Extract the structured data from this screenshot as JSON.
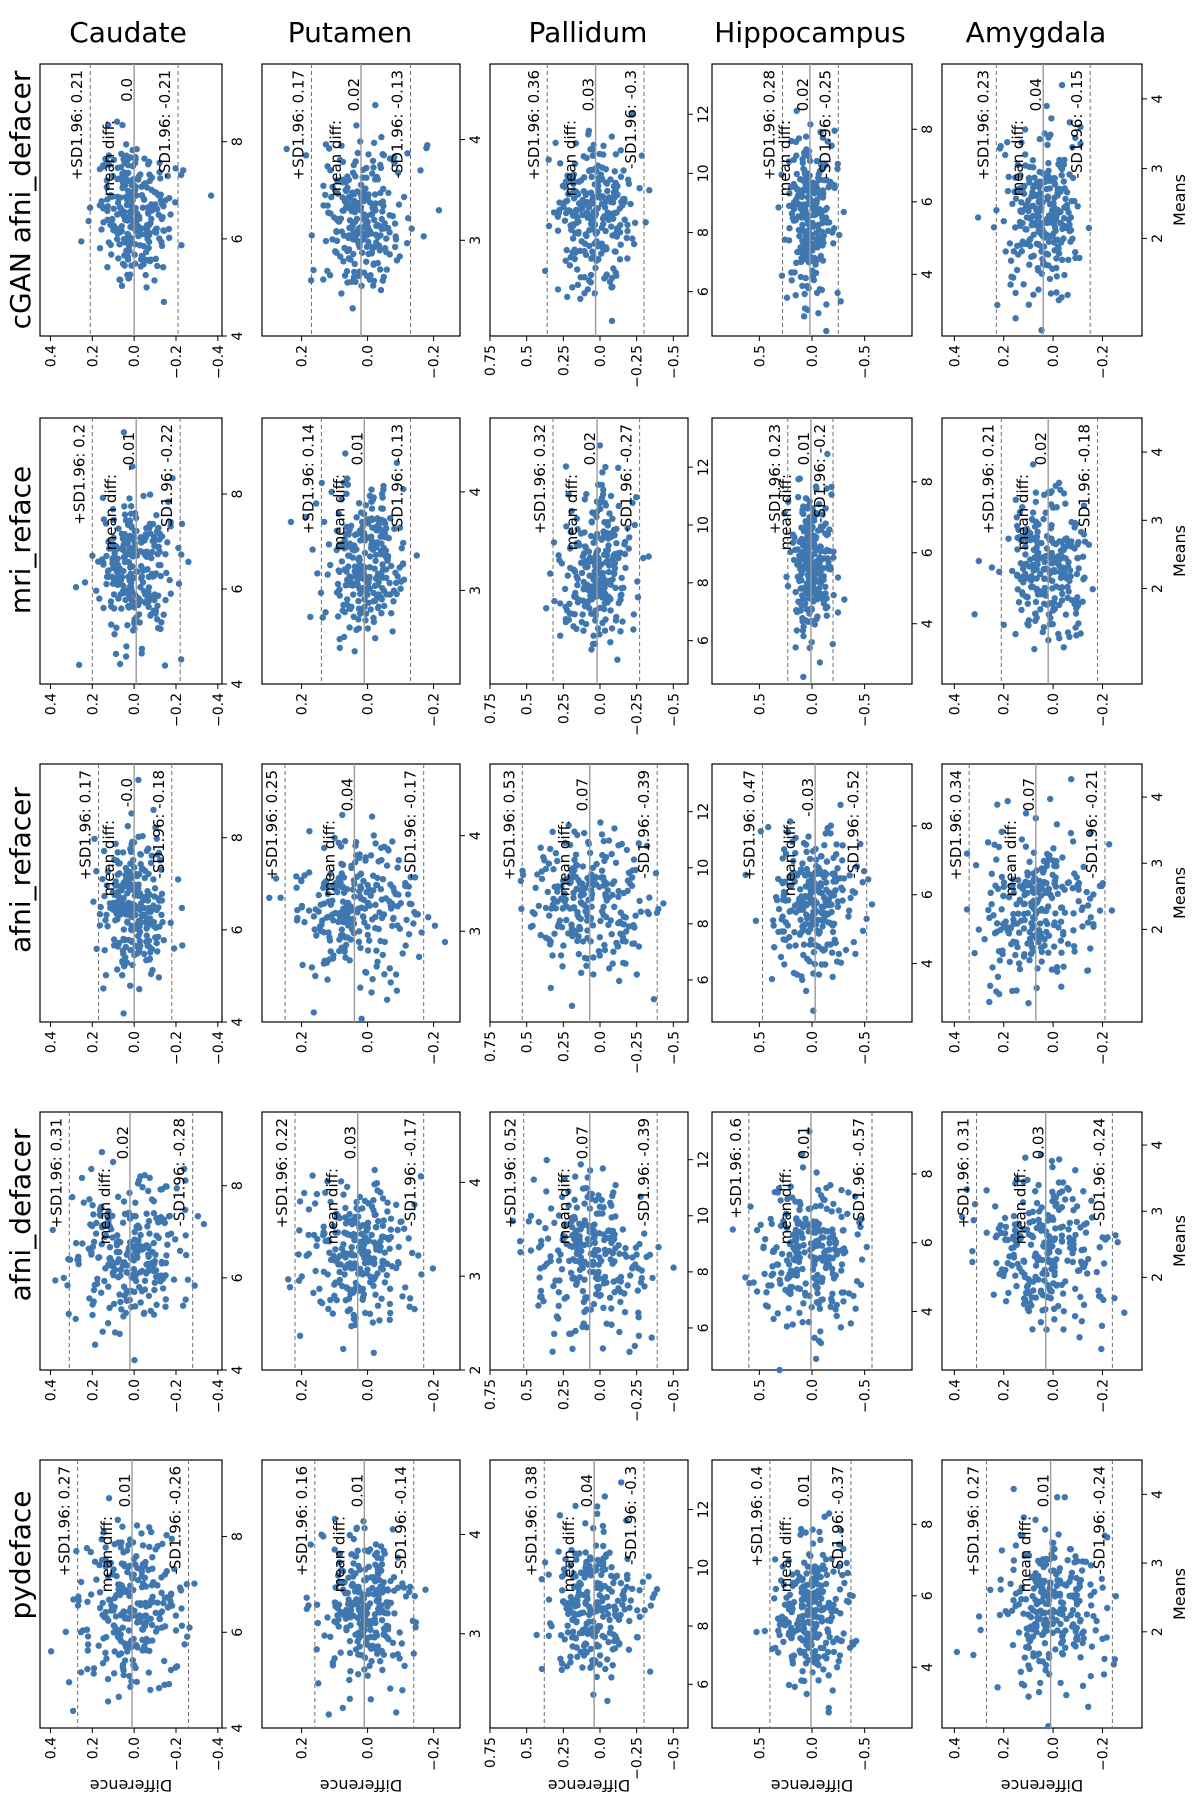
{
  "figure": {
    "regions": [
      "Caudate",
      "Putamen",
      "Pallidum",
      "Hippocampus",
      "Amygdala"
    ],
    "methods": [
      "cGAN afni_defacer",
      "mri_reface",
      "afni_refacer",
      "afni_defacer",
      "pydeface"
    ],
    "ylabel": "Difference",
    "xlabel": "Means",
    "mean_prefix": "mean diff:",
    "colors": {
      "points": "#3f77b0",
      "mean_line": "#9a9a9a",
      "sd_line": "#6e6e6e",
      "axis": "#000000"
    }
  },
  "chart_data": {
    "type": "scatter",
    "description_panels": [
      {
        "method": "cGAN afni_defacer",
        "region": "Caudate",
        "mean": "0.0",
        "up": "+SD1.96: 0.21",
        "lo": "-SD1.96: -0.21",
        "mean_v": 0.0,
        "up_v": 0.21,
        "lo_v": -0.21,
        "ylim": [
          -0.42,
          0.45
        ],
        "xlim": [
          4,
          9.6
        ],
        "xticks": [
          4,
          6,
          8
        ],
        "yticks": [
          -0.4,
          -0.2,
          0.0,
          0.2,
          0.4
        ]
      },
      {
        "method": "cGAN afni_defacer",
        "region": "Putamen",
        "mean": "0.02",
        "up": "+SD1.96: 0.17",
        "lo": "-SD1.96: -0.13",
        "mean_v": 0.02,
        "up_v": 0.17,
        "lo_v": -0.13,
        "ylim": [
          -0.28,
          0.32
        ],
        "xlim": [
          2.05,
          4.75
        ],
        "xticks": [
          3,
          4
        ],
        "yticks": [
          -0.2,
          0.0,
          0.2
        ]
      },
      {
        "method": "cGAN afni_defacer",
        "region": "Pallidum",
        "mean": "0.03",
        "up": "+SD1.96: 0.36",
        "lo": "-SD1.96: -0.3",
        "mean_v": 0.03,
        "up_v": 0.36,
        "lo_v": -0.3,
        "ylim": [
          -0.6,
          0.75
        ],
        "xlim": [
          4.5,
          13.7
        ],
        "xticks": [
          6,
          8,
          10,
          12
        ],
        "yticks": [
          -0.5,
          -0.25,
          0.0,
          0.25,
          0.5,
          0.75
        ]
      },
      {
        "method": "cGAN afni_defacer",
        "region": "Hippocampus",
        "mean": "0.02",
        "up": "+SD1.96: 0.28",
        "lo": "-SD1.96: -0.25",
        "mean_v": 0.02,
        "up_v": 0.28,
        "lo_v": -0.25,
        "ylim": [
          -0.95,
          0.95
        ],
        "xlim": [
          2.3,
          9.8
        ],
        "xticks": [
          4,
          6,
          8
        ],
        "yticks": [
          -0.5,
          0.0,
          0.5
        ]
      },
      {
        "method": "cGAN afni_defacer",
        "region": "Amygdala",
        "mean": "0.04",
        "up": "+SD1.96: 0.23",
        "lo": "-SD1.96: -0.15",
        "mean_v": 0.04,
        "up_v": 0.23,
        "lo_v": -0.15,
        "ylim": [
          -0.36,
          0.45
        ],
        "xlim": [
          0.6,
          4.5
        ],
        "xticks": [
          2,
          3,
          4
        ],
        "yticks": [
          -0.2,
          0.0,
          0.2,
          0.4
        ]
      },
      {
        "method": "mri_reface",
        "region": "Caudate",
        "mean": "-0.01",
        "up": "+SD1.96: 0.2",
        "lo": "-SD1.96: -0.22",
        "mean_v": -0.01,
        "up_v": 0.2,
        "lo_v": -0.22,
        "ylim": [
          -0.42,
          0.45
        ],
        "xlim": [
          4,
          9.6
        ],
        "xticks": [
          4,
          6,
          8
        ],
        "yticks": [
          -0.4,
          -0.2,
          0.0,
          0.2,
          0.4
        ]
      },
      {
        "method": "mri_reface",
        "region": "Putamen",
        "mean": "0.01",
        "up": "+SD1.96: 0.14",
        "lo": "-SD1.96: -0.13",
        "mean_v": 0.01,
        "up_v": 0.14,
        "lo_v": -0.13,
        "ylim": [
          -0.28,
          0.32
        ],
        "xlim": [
          2.05,
          4.75
        ],
        "xticks": [
          3,
          4
        ],
        "yticks": [
          -0.2,
          0.0,
          0.2
        ]
      },
      {
        "method": "mri_reface",
        "region": "Pallidum",
        "mean": "0.02",
        "up": "+SD1.96: 0.32",
        "lo": "-SD1.96: -0.27",
        "mean_v": 0.02,
        "up_v": 0.32,
        "lo_v": -0.27,
        "ylim": [
          -0.6,
          0.75
        ],
        "xlim": [
          4.5,
          13.7
        ],
        "xticks": [
          6,
          8,
          10,
          12
        ],
        "yticks": [
          -0.5,
          -0.25,
          0.0,
          0.25,
          0.5,
          0.75
        ]
      },
      {
        "method": "mri_reface",
        "region": "Hippocampus",
        "mean": "0.01",
        "up": "+SD1.96: 0.23",
        "lo": "-SD1.96: -0.2",
        "mean_v": 0.01,
        "up_v": 0.23,
        "lo_v": -0.2,
        "ylim": [
          -0.95,
          0.95
        ],
        "xlim": [
          2.3,
          9.8
        ],
        "xticks": [
          4,
          6,
          8
        ],
        "yticks": [
          -0.5,
          0.0,
          0.5
        ]
      },
      {
        "method": "mri_reface",
        "region": "Amygdala",
        "mean": "0.02",
        "up": "+SD1.96: 0.21",
        "lo": "-SD1.96: -0.18",
        "mean_v": 0.02,
        "up_v": 0.21,
        "lo_v": -0.18,
        "ylim": [
          -0.36,
          0.45
        ],
        "xlim": [
          0.6,
          4.5
        ],
        "xticks": [
          2,
          3,
          4
        ],
        "yticks": [
          -0.2,
          0.0,
          0.2,
          0.4
        ]
      },
      {
        "method": "afni_refacer",
        "region": "Caudate",
        "mean": "-0.0",
        "up": "+SD1.96: 0.17",
        "lo": "-SD1.96: -0.18",
        "mean_v": 0.0,
        "up_v": 0.17,
        "lo_v": -0.18,
        "ylim": [
          -0.42,
          0.45
        ],
        "xlim": [
          4,
          9.6
        ],
        "xticks": [
          4,
          6,
          8
        ],
        "yticks": [
          -0.4,
          -0.2,
          0.0,
          0.2,
          0.4
        ]
      },
      {
        "method": "afni_refacer",
        "region": "Putamen",
        "mean": "0.04",
        "up": "+SD1.96: 0.25",
        "lo": "-SD1.96: -0.17",
        "mean_v": 0.04,
        "up_v": 0.25,
        "lo_v": -0.17,
        "ylim": [
          -0.28,
          0.32
        ],
        "xlim": [
          2.05,
          4.75
        ],
        "xticks": [
          3,
          4
        ],
        "yticks": [
          -0.2,
          0.0,
          0.2
        ]
      },
      {
        "method": "afni_refacer",
        "region": "Pallidum",
        "mean": "0.07",
        "up": "+SD1.96: 0.53",
        "lo": "-SD1.96: -0.39",
        "mean_v": 0.07,
        "up_v": 0.53,
        "lo_v": -0.39,
        "ylim": [
          -0.6,
          0.75
        ],
        "xlim": [
          4.5,
          13.7
        ],
        "xticks": [
          6,
          8,
          10,
          12
        ],
        "yticks": [
          -0.5,
          -0.25,
          0.0,
          0.25,
          0.5,
          0.75
        ]
      },
      {
        "method": "afni_refacer",
        "region": "Hippocampus",
        "mean": "-0.03",
        "up": "+SD1.96: 0.47",
        "lo": "-SD1.96: -0.52",
        "mean_v": -0.03,
        "up_v": 0.47,
        "lo_v": -0.52,
        "ylim": [
          -0.95,
          0.95
        ],
        "xlim": [
          2.3,
          9.8
        ],
        "xticks": [
          4,
          6,
          8
        ],
        "yticks": [
          -0.5,
          0.0,
          0.5
        ]
      },
      {
        "method": "afni_refacer",
        "region": "Amygdala",
        "mean": "0.07",
        "up": "+SD1.96: 0.34",
        "lo": "-SD1.96: -0.21",
        "mean_v": 0.07,
        "up_v": 0.34,
        "lo_v": -0.21,
        "ylim": [
          -0.36,
          0.45
        ],
        "xlim": [
          0.6,
          4.5
        ],
        "xticks": [
          2,
          3,
          4
        ],
        "yticks": [
          -0.2,
          0.0,
          0.2,
          0.4
        ]
      },
      {
        "method": "afni_defacer",
        "region": "Caudate",
        "mean": "0.02",
        "up": "+SD1.96: 0.31",
        "lo": "-SD1.96: -0.28",
        "mean_v": 0.02,
        "up_v": 0.31,
        "lo_v": -0.28,
        "ylim": [
          -0.42,
          0.45
        ],
        "xlim": [
          4,
          9.6
        ],
        "xticks": [
          4,
          6,
          8
        ],
        "yticks": [
          -0.4,
          -0.2,
          0.0,
          0.2,
          0.4
        ]
      },
      {
        "method": "afni_defacer",
        "region": "Putamen",
        "mean": "0.03",
        "up": "+SD1.96: 0.22",
        "lo": "-SD1.96: -0.17",
        "mean_v": 0.03,
        "up_v": 0.22,
        "lo_v": -0.17,
        "ylim": [
          -0.28,
          0.32
        ],
        "xlim": [
          2.0,
          4.75
        ],
        "xticks": [
          2,
          3,
          4
        ],
        "yticks": [
          -0.2,
          0.0,
          0.2
        ]
      },
      {
        "method": "afni_defacer",
        "region": "Pallidum",
        "mean": "0.07",
        "up": "+SD1.96: 0.52",
        "lo": "-SD1.96: -0.39",
        "mean_v": 0.07,
        "up_v": 0.52,
        "lo_v": -0.39,
        "ylim": [
          -0.6,
          0.75
        ],
        "xlim": [
          4.5,
          13.7
        ],
        "xticks": [
          6,
          8,
          10,
          12
        ],
        "yticks": [
          -0.5,
          -0.25,
          0.0,
          0.25,
          0.5,
          0.75
        ]
      },
      {
        "method": "afni_defacer",
        "region": "Hippocampus",
        "mean": "0.01",
        "up": "+SD1.96: 0.6",
        "lo": "-SD1.96: -0.57",
        "mean_v": 0.01,
        "up_v": 0.6,
        "lo_v": -0.57,
        "ylim": [
          -0.95,
          0.95
        ],
        "xlim": [
          2.3,
          9.8
        ],
        "xticks": [
          4,
          6,
          8
        ],
        "yticks": [
          -0.5,
          0.0,
          0.5
        ]
      },
      {
        "method": "afni_defacer",
        "region": "Amygdala",
        "mean": "0.03",
        "up": "+SD1.96: 0.31",
        "lo": "-SD1.96: -0.24",
        "mean_v": 0.03,
        "up_v": 0.31,
        "lo_v": -0.24,
        "ylim": [
          -0.36,
          0.45
        ],
        "xlim": [
          0.6,
          4.5
        ],
        "xticks": [
          2,
          3,
          4
        ],
        "yticks": [
          -0.2,
          0.0,
          0.2,
          0.4
        ]
      },
      {
        "method": "pydeface",
        "region": "Caudate",
        "mean": "0.01",
        "up": "+SD1.96: 0.27",
        "lo": "-SD1.96: -0.26",
        "mean_v": 0.01,
        "up_v": 0.27,
        "lo_v": -0.26,
        "ylim": [
          -0.42,
          0.45
        ],
        "xlim": [
          4,
          9.6
        ],
        "xticks": [
          4,
          6,
          8
        ],
        "yticks": [
          -0.4,
          -0.2,
          0.0,
          0.2,
          0.4
        ]
      },
      {
        "method": "pydeface",
        "region": "Putamen",
        "mean": "0.01",
        "up": "+SD1.96: 0.16",
        "lo": "-SD1.96: -0.14",
        "mean_v": 0.01,
        "up_v": 0.16,
        "lo_v": -0.14,
        "ylim": [
          -0.28,
          0.32
        ],
        "xlim": [
          2.05,
          4.75
        ],
        "xticks": [
          3,
          4
        ],
        "yticks": [
          -0.2,
          0.0,
          0.2
        ]
      },
      {
        "method": "pydeface",
        "region": "Pallidum",
        "mean": "0.04",
        "up": "+SD1.96: 0.38",
        "lo": "-SD1.96: -0.3",
        "mean_v": 0.04,
        "up_v": 0.38,
        "lo_v": -0.3,
        "ylim": [
          -0.6,
          0.75
        ],
        "xlim": [
          4.5,
          13.7
        ],
        "xticks": [
          6,
          8,
          10,
          12
        ],
        "yticks": [
          -0.5,
          -0.25,
          0.0,
          0.25,
          0.5,
          0.75
        ]
      },
      {
        "method": "pydeface",
        "region": "Hippocampus",
        "mean": "0.01",
        "up": "+SD1.96: 0.4",
        "lo": "-SD1.96: -0.37",
        "mean_v": 0.01,
        "up_v": 0.4,
        "lo_v": -0.37,
        "ylim": [
          -0.95,
          0.95
        ],
        "xlim": [
          2.3,
          9.8
        ],
        "xticks": [
          4,
          6,
          8
        ],
        "yticks": [
          -0.5,
          0.0,
          0.5
        ]
      },
      {
        "method": "pydeface",
        "region": "Amygdala",
        "mean": "0.01",
        "up": "+SD1.96: 0.27",
        "lo": "-SD1.96: -0.24",
        "mean_v": 0.01,
        "up_v": 0.27,
        "lo_v": -0.24,
        "ylim": [
          -0.36,
          0.45
        ],
        "xlim": [
          0.6,
          4.5
        ],
        "xticks": [
          2,
          3,
          4
        ],
        "yticks": [
          -0.2,
          0.0,
          0.2,
          0.4
        ]
      }
    ]
  }
}
